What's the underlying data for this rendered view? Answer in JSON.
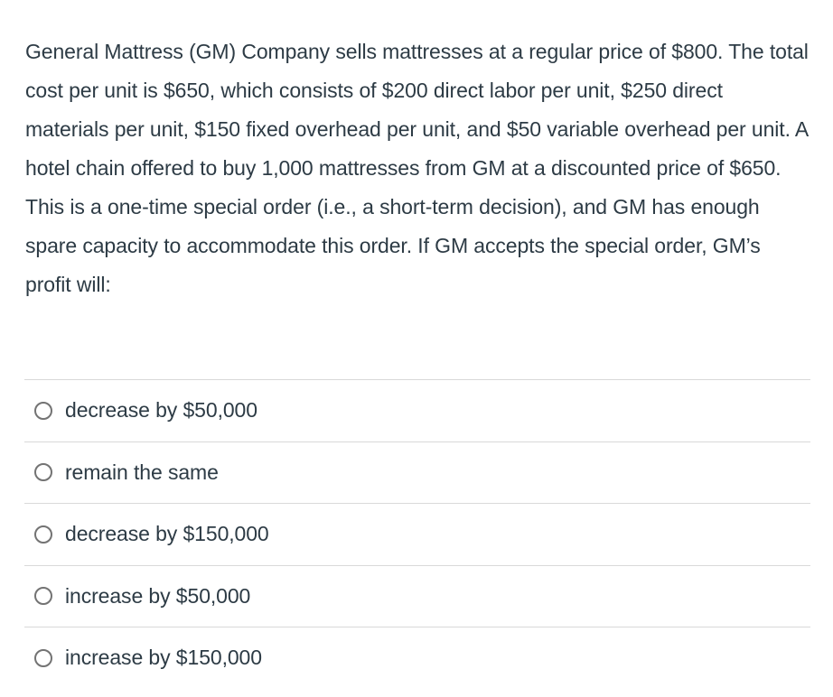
{
  "question": {
    "text": "General Mattress (GM) Company sells mattresses at a regular price of $800. The total cost per unit is $650, which consists of $200 direct labor per unit, $250 direct materials per unit, $150 fixed overhead per unit, and $50 variable overhead per unit. A hotel chain offered to buy 1,000 mattresses from GM at a discounted price of $650. This is a one-time special order (i.e., a short-term decision), and GM has enough spare capacity to accommodate this order. If GM accepts the special order, GM’s profit will:"
  },
  "options": [
    {
      "label": "decrease by $50,000",
      "selected": false
    },
    {
      "label": "remain the same",
      "selected": false
    },
    {
      "label": "decrease by $150,000",
      "selected": false
    },
    {
      "label": "increase by $50,000",
      "selected": false
    },
    {
      "label": "increase by $150,000",
      "selected": false
    }
  ],
  "colors": {
    "text": "#2d3b45",
    "divider": "#d9d9d9",
    "radio_border": "#737373",
    "background": "#ffffff"
  }
}
